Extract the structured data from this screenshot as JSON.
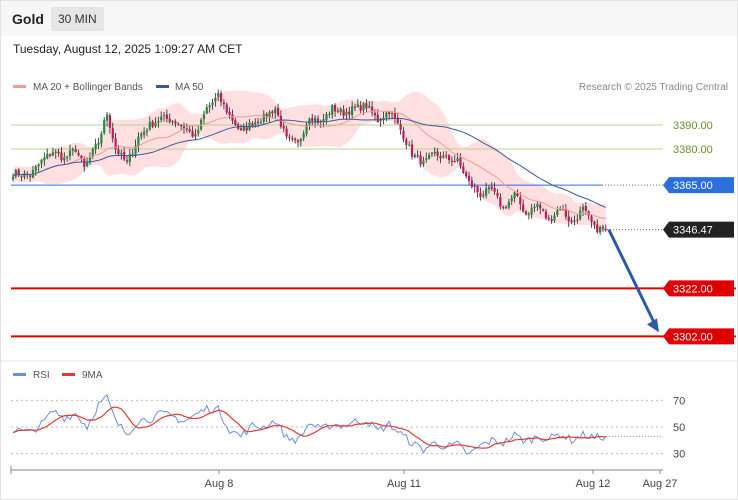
{
  "header": {
    "instrument": "Gold",
    "timeframe": "30 MIN"
  },
  "timestamp": "Tuesday, August 12, 2025 1:09:27 AM CET",
  "credit": "Research © 2025 Trading Central",
  "colors": {
    "ma20": "#f29b97",
    "ma50": "#3a5a9a",
    "band_fill": "#ffd9d9",
    "up": "#1e8e3e",
    "down": "#c2185b",
    "support": "#e00000",
    "pivot": "#2a6fdb",
    "resistance": "#b5d48a",
    "arrow": "#2b5ba8",
    "rsi": "#6b8fde",
    "rsi_ma": "#e53935"
  },
  "chart_data": [
    {
      "type": "candlestick",
      "legend": [
        "MA 20 + Bollinger Bands",
        "MA 50"
      ],
      "legend_position": "top-left",
      "ylim": [
        3293,
        3415
      ],
      "x_ticks": [
        "Aug 8",
        "Aug 11",
        "Aug 12",
        "Aug 27"
      ],
      "current_price": 3346.47,
      "levels": [
        {
          "value": 3390.0,
          "label": "3390.00",
          "kind": "resistance"
        },
        {
          "value": 3380.0,
          "label": "3380.00",
          "kind": "resistance"
        },
        {
          "value": 3365.0,
          "label": "3365.00",
          "kind": "pivot"
        },
        {
          "value": 3346.47,
          "label": "3346.47",
          "kind": "current"
        },
        {
          "value": 3322.0,
          "label": "3322.00",
          "kind": "support"
        },
        {
          "value": 3302.0,
          "label": "3302.00",
          "kind": "support"
        }
      ],
      "close_anchors": [
        [
          0,
          3370
        ],
        [
          6,
          3369
        ],
        [
          10,
          3375
        ],
        [
          14,
          3379
        ],
        [
          18,
          3376
        ],
        [
          22,
          3380
        ],
        [
          25,
          3372
        ],
        [
          30,
          3383
        ],
        [
          33,
          3395
        ],
        [
          36,
          3380
        ],
        [
          40,
          3374
        ],
        [
          44,
          3385
        ],
        [
          48,
          3390
        ],
        [
          52,
          3393
        ],
        [
          56,
          3392
        ],
        [
          60,
          3389
        ],
        [
          64,
          3385
        ],
        [
          68,
          3397
        ],
        [
          72,
          3402
        ],
        [
          76,
          3394
        ],
        [
          80,
          3387
        ],
        [
          84,
          3391
        ],
        [
          88,
          3393
        ],
        [
          92,
          3397
        ],
        [
          96,
          3384
        ],
        [
          100,
          3382
        ],
        [
          104,
          3394
        ],
        [
          108,
          3391
        ],
        [
          112,
          3397
        ],
        [
          116,
          3395
        ],
        [
          120,
          3397
        ],
        [
          124,
          3398
        ],
        [
          128,
          3392
        ],
        [
          132,
          3396
        ],
        [
          136,
          3388
        ],
        [
          140,
          3378
        ],
        [
          144,
          3374
        ],
        [
          148,
          3378
        ],
        [
          152,
          3376
        ],
        [
          156,
          3375
        ],
        [
          160,
          3366
        ],
        [
          164,
          3361
        ],
        [
          168,
          3363
        ],
        [
          172,
          3355
        ],
        [
          176,
          3361
        ],
        [
          180,
          3353
        ],
        [
          184,
          3357
        ],
        [
          188,
          3350
        ],
        [
          192,
          3356
        ],
        [
          196,
          3349
        ],
        [
          200,
          3355
        ],
        [
          204,
          3347
        ],
        [
          208,
          3346.47
        ]
      ],
      "forecast": {
        "from": 3346.47,
        "to": 3302.0
      }
    },
    {
      "type": "line",
      "legend": [
        "RSI",
        "9MA"
      ],
      "legend_position": "top-left",
      "ylim": [
        20,
        80
      ],
      "y_ticks": [
        70,
        50,
        30
      ],
      "rsi_anchors": [
        [
          0,
          48
        ],
        [
          6,
          46
        ],
        [
          10,
          52
        ],
        [
          14,
          62
        ],
        [
          18,
          57
        ],
        [
          22,
          60
        ],
        [
          26,
          50
        ],
        [
          30,
          67
        ],
        [
          33,
          72
        ],
        [
          36,
          54
        ],
        [
          40,
          45
        ],
        [
          44,
          55
        ],
        [
          48,
          56
        ],
        [
          52,
          60
        ],
        [
          56,
          58
        ],
        [
          60,
          54
        ],
        [
          64,
          59
        ],
        [
          68,
          64
        ],
        [
          72,
          63
        ],
        [
          76,
          48
        ],
        [
          80,
          43
        ],
        [
          84,
          51
        ],
        [
          88,
          50
        ],
        [
          92,
          55
        ],
        [
          96,
          42
        ],
        [
          100,
          40
        ],
        [
          104,
          53
        ],
        [
          108,
          48
        ],
        [
          112,
          52
        ],
        [
          116,
          51
        ],
        [
          120,
          54
        ],
        [
          124,
          55
        ],
        [
          128,
          47
        ],
        [
          132,
          52
        ],
        [
          136,
          45
        ],
        [
          140,
          38
        ],
        [
          144,
          33
        ],
        [
          148,
          38
        ],
        [
          152,
          35
        ],
        [
          156,
          37
        ],
        [
          160,
          29
        ],
        [
          164,
          36
        ],
        [
          168,
          40
        ],
        [
          172,
          38
        ],
        [
          176,
          44
        ],
        [
          180,
          39
        ],
        [
          184,
          43
        ],
        [
          188,
          41
        ],
        [
          192,
          45
        ],
        [
          196,
          40
        ],
        [
          200,
          44
        ],
        [
          204,
          42
        ],
        [
          208,
          43
        ]
      ]
    }
  ]
}
